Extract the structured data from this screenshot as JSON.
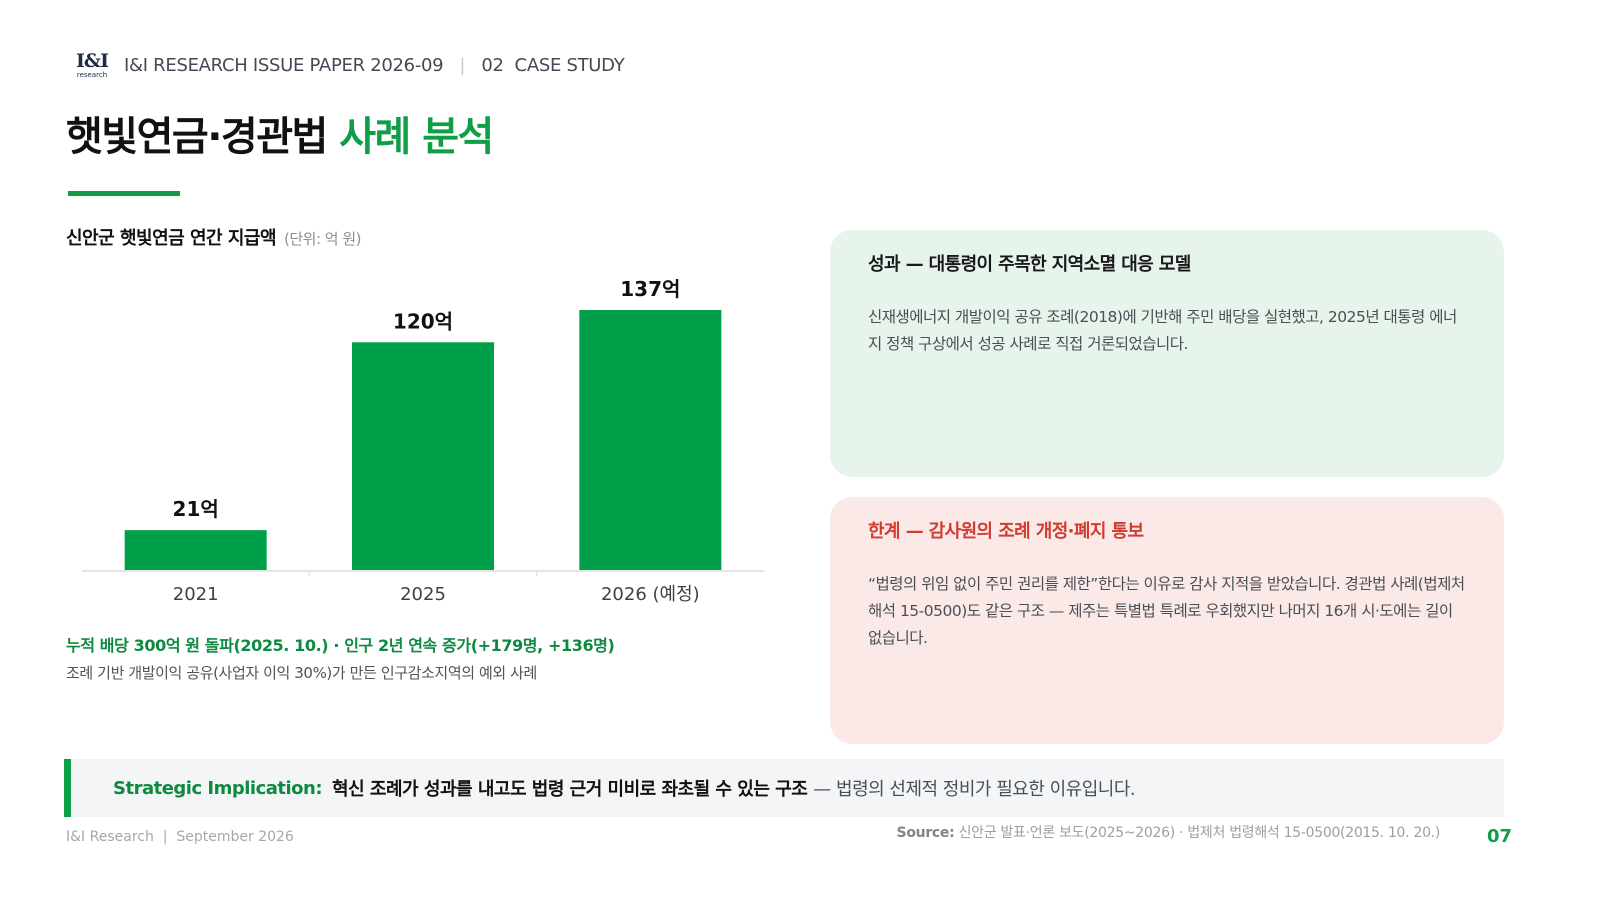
{
  "header": {
    "logo_text": "I&I",
    "logo_sub": "research",
    "paper": "I&I RESEARCH ISSUE PAPER 2026-09",
    "separator": "|",
    "section": "02  CASE STUDY"
  },
  "title": {
    "main": "햇빛연금·경관법 ",
    "accent": "사례 분석"
  },
  "chart_header": {
    "title": "신안군 햇빛연금 연간 지급액",
    "unit": "(단위: 억 원)"
  },
  "chart_data": {
    "type": "bar",
    "title": "신안군 햇빛연금 연간 지급액",
    "unit": "억 원",
    "categories": [
      "2021",
      "2025",
      "2026 (예정)"
    ],
    "values": [
      21,
      120,
      137
    ],
    "data_labels": [
      "21억",
      "120억",
      "137억"
    ],
    "ylim": [
      0,
      137
    ],
    "bar_color": "#00a04a",
    "grid": false
  },
  "stats": {
    "line1": "누적 배당 300억 원 돌파(2025. 10.) · 인구 2년 연속 증가(+179명, +136명)",
    "line2": "조례 기반 개발이익 공유(사업자 이익 30%)가 만든 인구감소지역의 예외 사례"
  },
  "card_success": {
    "title": "성과 — 대통령이 주목한 지역소멸 대응 모델",
    "body": "신재생에너지 개발이익 공유 조례(2018)에 기반해 주민 배당을 실현했고, 2025년 대통령 에너지 정책 구상에서 성공 사례로 직접 거론되었습니다."
  },
  "card_limit": {
    "title": "한계 — 감사원의 조례 개정·폐지 통보",
    "body": "“법령의 위임 없이 주민 권리를 제한”한다는 이유로 감사 지적을 받았습니다. 경관법 사례(법제처 해석 15-0500)도 같은 구조 — 제주는 특별법 특례로 우회했지만 나머지 16개 시·도에는 길이 없습니다."
  },
  "implication": {
    "label": "Strategic Implication:",
    "strong": "혁신 조례가 성과를 내고도 법령 근거 미비로 좌초될 수 있는 구조",
    "rest": "— 법령의 선제적 정비가 필요한 이유입니다."
  },
  "footer": {
    "left": "I&I Research  |  September 2026",
    "source_label": "Source:",
    "source_text": " 신안군 발표·언론 보도(2025~2026) · 법제처 법령해석 15-0500(2015. 10. 20.)",
    "page": "07"
  },
  "colors": {
    "accent": "#0e9e47",
    "warning": "#d23b30",
    "success_bg": "#e6f4ec",
    "warning_bg": "#fbe9e7"
  }
}
